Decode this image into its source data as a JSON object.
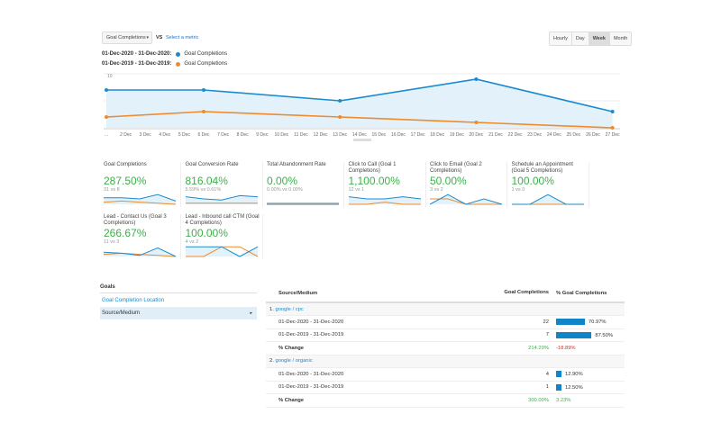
{
  "toolbar": {
    "metric": "Goal Completions",
    "vs": "VS",
    "select_metric": "Select a metric",
    "granularity": [
      "Hourly",
      "Day",
      "Week",
      "Month"
    ],
    "active": "Week"
  },
  "legend": [
    {
      "range": "01-Dec-2020 - 31-Dec-2020:",
      "metric": "Goal Completions",
      "color": "#1a8bd0"
    },
    {
      "range": "01-Dec-2019 - 31-Dec-2019:",
      "metric": "Goal Completions",
      "color": "#ef8b2c"
    }
  ],
  "chart_data": {
    "type": "line",
    "y_ticks": [
      "10",
      "5"
    ],
    "ylim": [
      0,
      10
    ],
    "x_labels": [
      "...",
      "2 Dec",
      "3 Dec",
      "4 Dec",
      "5 Dec",
      "6 Dec",
      "7 Dec",
      "8 Dec",
      "9 Dec",
      "10 Dec",
      "11 Dec",
      "12 Dec",
      "13 Dec",
      "14 Dec",
      "15 Dec",
      "16 Dec",
      "17 Dec",
      "18 Dec",
      "19 Dec",
      "20 Dec",
      "21 Dec",
      "22 Dec",
      "23 Dec",
      "24 Dec",
      "25 Dec",
      "26 Dec",
      "27 Dec"
    ],
    "point_days": [
      1,
      6,
      13,
      20,
      27
    ],
    "series": [
      {
        "values": [
          7,
          7,
          5,
          9,
          3
        ],
        "color": "#1a8bd0"
      },
      {
        "values": [
          2,
          3,
          2,
          1,
          0
        ],
        "color": "#ef8b2c"
      }
    ]
  },
  "cards": [
    {
      "title": "Goal Completions",
      "value": "287.50%",
      "sub": "31 vs 8",
      "a": [
        6,
        6,
        5,
        9,
        3
      ],
      "b": [
        2,
        3,
        2,
        1,
        0
      ]
    },
    {
      "title": "Goal Conversion Rate",
      "value": "816.04%",
      "sub": "5.59% vs 0.61%",
      "a": [
        7,
        5,
        4,
        8,
        7
      ],
      "b": [
        1,
        1,
        1,
        1,
        1
      ]
    },
    {
      "title": "Total Abandonment Rate",
      "value": "0.00%",
      "sub": "0.00% vs 0.00%",
      "a": [
        0,
        0,
        0,
        0,
        0
      ],
      "b": [
        1,
        1,
        1,
        1,
        1
      ]
    },
    {
      "title": "Click to Call (Goal 1 Completions)",
      "value": "1,100.00%",
      "sub": "12 vs 1",
      "a": [
        7,
        5,
        5,
        7,
        5
      ],
      "b": [
        0,
        0,
        2,
        0,
        0
      ]
    },
    {
      "title": "Click to Email (Goal 2 Completions)",
      "value": "50.00%",
      "sub": "3 vs 2",
      "a": [
        0,
        9,
        0,
        5,
        0
      ],
      "b": [
        5,
        5,
        0,
        0,
        0
      ]
    },
    {
      "title": "Schedule an Appointment (Goal 5 Completions)",
      "value": "100.00%",
      "sub": "1 vs 0",
      "a": [
        0,
        0,
        9,
        0,
        0
      ],
      "b": [
        0,
        0,
        0,
        0,
        0
      ]
    },
    {
      "title": "Lead - Contact Us (Goal 3 Completions)",
      "value": "266.67%",
      "sub": "11 vs 3",
      "a": [
        4,
        3,
        1,
        8,
        0
      ],
      "b": [
        2,
        3,
        2,
        1,
        0
      ]
    },
    {
      "title": "Lead - Inbound call CTM (Goal 4 Completions)",
      "value": "100.00%",
      "sub": "4 vs 2",
      "a": [
        9,
        9,
        9,
        0,
        9
      ],
      "b": [
        0,
        0,
        9,
        9,
        0
      ]
    }
  ],
  "goals": {
    "heading": "Goals",
    "items": [
      "Goal Completion Location",
      "Source/Medium"
    ],
    "selected": "Source/Medium"
  },
  "table": {
    "headers": [
      "Source/Medium",
      "Goal Completions",
      "% Goal Completions"
    ],
    "groups": [
      {
        "label": "1.",
        "name": "google / cpc",
        "rows": [
          {
            "range": "01-Dec-2020 - 31-Dec-2020",
            "count": "22",
            "pct": "70.97%",
            "pv": 70.97
          },
          {
            "range": "01-Dec-2019 - 31-Dec-2019",
            "count": "7",
            "pct": "87.50%",
            "pv": 87.5
          }
        ],
        "change_label": "% Change",
        "change_count": "214.29%",
        "change_pct": "-18.89%"
      },
      {
        "label": "2.",
        "name": "google / organic",
        "rows": [
          {
            "range": "01-Dec-2020 - 31-Dec-2020",
            "count": "4",
            "pct": "12.90%",
            "pv": 12.9
          },
          {
            "range": "01-Dec-2019 - 31-Dec-2019",
            "count": "1",
            "pct": "12.50%",
            "pv": 12.5
          }
        ],
        "change_label": "% Change",
        "change_count": "300.00%",
        "change_pct": "3.23%"
      }
    ]
  }
}
